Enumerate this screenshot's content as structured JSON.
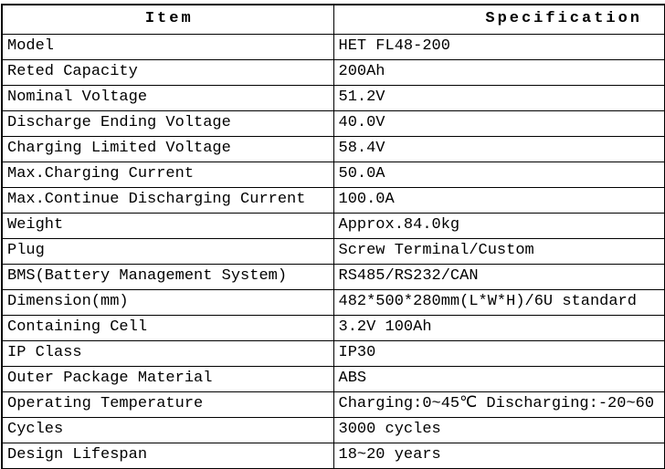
{
  "colors": {
    "border": "#000000",
    "text": "#000000",
    "background": "#ffffff"
  },
  "table": {
    "columns": [
      {
        "label": "Item"
      },
      {
        "label": "Specification"
      }
    ],
    "rows": [
      {
        "item": "Model",
        "spec": "HET FL48-200"
      },
      {
        "item": "Reted Capacity",
        "spec": "200Ah"
      },
      {
        "item": "Nominal Voltage",
        "spec": "51.2V"
      },
      {
        "item": "Discharge Ending Voltage",
        "spec": "40.0V"
      },
      {
        "item": "Charging Limited Voltage",
        "spec": "58.4V"
      },
      {
        "item": "Max.Charging Current",
        "spec": "50.0A"
      },
      {
        "item": "Max.Continue Discharging Current",
        "spec": "100.0A"
      },
      {
        "item": "Weight",
        "spec": "Approx.84.0kg"
      },
      {
        "item": "Plug",
        "spec": "Screw Terminal/Custom"
      },
      {
        "item": "BMS(Battery Management System)",
        "spec": "RS485/RS232/CAN"
      },
      {
        "item": "Dimension(mm)",
        "spec": "482*500*280mm(L*W*H)/6U standard"
      },
      {
        "item": "Containing Cell",
        "spec": "3.2V 100Ah"
      },
      {
        "item": "IP Class",
        "spec": "IP30"
      },
      {
        "item": "Outer Package Material",
        "spec": "ABS"
      },
      {
        "item": "Operating Temperature",
        "spec": "Charging:0~45℃ Discharging:-20~60"
      },
      {
        "item": "Cycles",
        "spec": "3000 cycles"
      },
      {
        "item": "Design Lifespan",
        "spec": "18~20 years"
      }
    ]
  }
}
